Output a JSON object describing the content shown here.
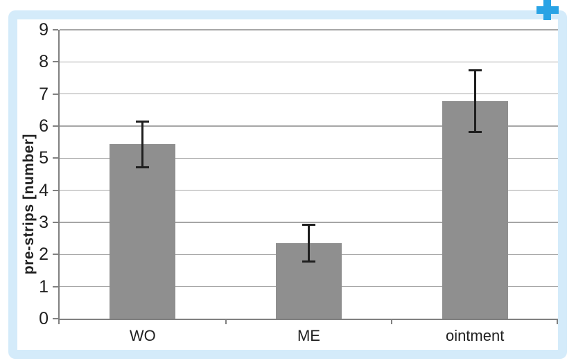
{
  "frame": {
    "border_color": "#d4ebfa",
    "background": "#ffffff"
  },
  "plus_icon": {
    "name": "expand-plus",
    "color": "#29a3e5"
  },
  "chart_data": {
    "type": "bar",
    "title": "",
    "xlabel": "",
    "ylabel": "pre-strips [number]",
    "categories": [
      "WO",
      "ME",
      "ointment"
    ],
    "series": [
      {
        "name": "pre-strips",
        "values": [
          5.43,
          2.36,
          6.78
        ],
        "error_bars": [
          0.72,
          0.58,
          0.97
        ]
      }
    ],
    "ylim": [
      0,
      9
    ],
    "yticks": [
      0,
      1,
      2,
      3,
      4,
      5,
      6,
      7,
      8,
      9
    ],
    "grid": true,
    "legend_position": "none",
    "bar_color": "#8f8f8f",
    "error_color": "#1f1f1f",
    "gridline_color": "#a6a6a6",
    "axis_color": "#808080",
    "tick_label_color": "#1f1f1f"
  }
}
